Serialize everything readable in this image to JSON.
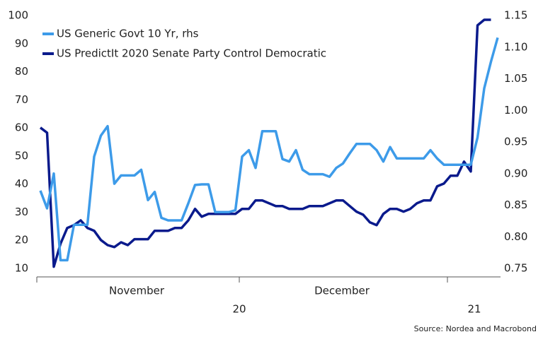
{
  "chart_data": {
    "type": "line",
    "legend": "top-left",
    "x_month_labels": [
      "November",
      "December"
    ],
    "x_year_labels": [
      "20",
      "21"
    ],
    "source": "Source: Nordea and Macrobond",
    "ylim": [
      10,
      100
    ],
    "yticks": [
      10,
      20,
      30,
      40,
      50,
      60,
      70,
      80,
      90,
      100
    ],
    "y2lim": [
      0.75,
      1.15
    ],
    "y2ticks": [
      {
        "value": 0.75,
        "label": "0.75"
      },
      {
        "value": 0.8,
        "label": "0.80"
      },
      {
        "value": 0.85,
        "label": "0.85"
      },
      {
        "value": 0.9,
        "label": "0.90"
      },
      {
        "value": 0.95,
        "label": "0.95"
      },
      {
        "value": 1.0,
        "label": "1.00"
      },
      {
        "value": 1.05,
        "label": "1.05"
      },
      {
        "value": 1.1,
        "label": "1.10"
      },
      {
        "value": 1.15,
        "label": "1.15"
      }
    ],
    "series": [
      {
        "name": "US Generic Govt 10 Yr, rhs",
        "color": "#3d9be9",
        "axis": "y2",
        "values": [
          0.873,
          0.845,
          0.9,
          0.763,
          0.763,
          0.819,
          0.819,
          0.819,
          0.927,
          0.96,
          0.975,
          0.884,
          0.897,
          0.897,
          0.897,
          0.906,
          0.858,
          0.871,
          0.83,
          0.826,
          0.826,
          0.826,
          0.853,
          0.882,
          0.883,
          0.883,
          0.839,
          0.839,
          0.839,
          0.842,
          0.927,
          0.937,
          0.909,
          0.967,
          0.967,
          0.967,
          0.923,
          0.919,
          0.937,
          0.906,
          0.899,
          0.899,
          0.899,
          0.895,
          0.909,
          0.916,
          0.932,
          0.947,
          0.947,
          0.947,
          0.937,
          0.919,
          0.942,
          0.924,
          0.924,
          0.924,
          0.924,
          0.924,
          0.937,
          0.924,
          0.914,
          0.914,
          0.914,
          0.914,
          0.914,
          0.957,
          1.035,
          1.077,
          1.115
        ]
      },
      {
        "name": "US PredictIt 2020 Senate Party Control Democratic",
        "color": "#0a1a8c",
        "values": [
          60.1,
          58.3,
          10.6,
          18.8,
          24.4,
          25.4,
          27.1,
          24.4,
          23.4,
          20.1,
          18.3,
          17.6,
          19.3,
          18.3,
          20.4,
          20.4,
          20.4,
          23.4,
          23.4,
          23.4,
          24.4,
          24.4,
          27.1,
          31.2,
          28.4,
          29.4,
          29.4,
          29.4,
          29.4,
          29.4,
          31.2,
          31.2,
          34.2,
          34.2,
          33.2,
          32.2,
          32.2,
          31.2,
          31.2,
          31.2,
          32.2,
          32.2,
          32.2,
          33.2,
          34.2,
          34.2,
          32.2,
          30.2,
          29.1,
          26.4,
          25.4,
          29.4,
          31.2,
          31.2,
          30.2,
          31.2,
          33.2,
          34.2,
          34.2,
          39.2,
          40.2,
          43.0,
          43.0,
          48.0,
          44.5,
          96.5,
          98.5,
          98.5,
          null
        ]
      }
    ]
  }
}
